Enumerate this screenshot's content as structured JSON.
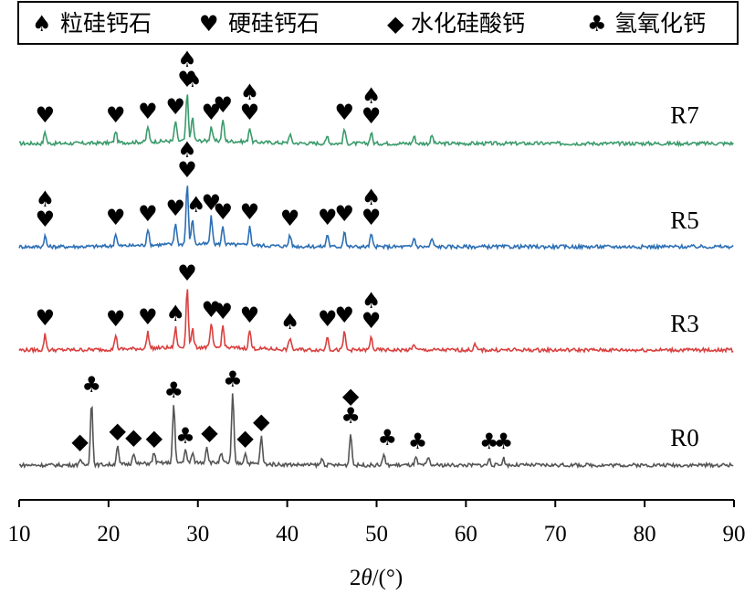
{
  "chart_data": {
    "type": "line",
    "xlim": [
      10,
      90
    ],
    "x_ticks": [
      "10",
      "20",
      "30",
      "40",
      "50",
      "60",
      "70",
      "80",
      "90"
    ],
    "xlabel": "2θ/(°)",
    "xlabel_parts": {
      "prefix": "2",
      "theta": "θ",
      "suffix": "/(°)"
    },
    "grid": false,
    "y_axis_visible": false,
    "legend": {
      "placement": "top",
      "entries": [
        {
          "symbol": "spade-icon",
          "glyph": "♠",
          "label": "粒硅钙石"
        },
        {
          "symbol": "heart-icon",
          "glyph": "♥",
          "label": "硬硅钙石"
        },
        {
          "symbol": "diamond-icon",
          "glyph": "◆",
          "label": "水化硅酸钙"
        },
        {
          "symbol": "club-icon",
          "glyph": "♣",
          "label": "氢氧化钙"
        }
      ]
    },
    "series": [
      {
        "name": "R7",
        "color": "#3a9b6b",
        "peaks": [
          {
            "x": 12.9,
            "h": 13
          },
          {
            "x": 20.8,
            "h": 13
          },
          {
            "x": 24.4,
            "h": 17
          },
          {
            "x": 27.5,
            "h": 22
          },
          {
            "x": 28.8,
            "h": 52
          },
          {
            "x": 29.4,
            "h": 26
          },
          {
            "x": 31.5,
            "h": 16
          },
          {
            "x": 32.8,
            "h": 24
          },
          {
            "x": 35.8,
            "h": 16
          },
          {
            "x": 40.3,
            "h": 10
          },
          {
            "x": 44.5,
            "h": 8
          },
          {
            "x": 46.4,
            "h": 16
          },
          {
            "x": 49.4,
            "h": 12
          },
          {
            "x": 54.2,
            "h": 8
          },
          {
            "x": 56.2,
            "h": 9
          }
        ],
        "markers": [
          {
            "x": 12.9,
            "symbols": [
              "heart"
            ]
          },
          {
            "x": 20.8,
            "symbols": [
              "heart"
            ]
          },
          {
            "x": 24.4,
            "symbols": [
              "heart"
            ]
          },
          {
            "x": 27.5,
            "symbols": [
              "heart"
            ]
          },
          {
            "x": 28.8,
            "symbols": [
              "spade",
              "heart"
            ]
          },
          {
            "x": 29.4,
            "symbols": [
              "spade"
            ]
          },
          {
            "x": 31.5,
            "symbols": [
              "heart"
            ]
          },
          {
            "x": 32.8,
            "symbols": [
              "heart"
            ]
          },
          {
            "x": 35.8,
            "symbols": [
              "spade",
              "heart"
            ]
          },
          {
            "x": 46.4,
            "symbols": [
              "heart"
            ]
          },
          {
            "x": 49.4,
            "symbols": [
              "spade",
              "heart"
            ]
          }
        ]
      },
      {
        "name": "R5",
        "color": "#2c6fb5",
        "peaks": [
          {
            "x": 12.9,
            "h": 12
          },
          {
            "x": 20.8,
            "h": 14
          },
          {
            "x": 24.4,
            "h": 18
          },
          {
            "x": 27.5,
            "h": 24
          },
          {
            "x": 28.8,
            "h": 66
          },
          {
            "x": 29.4,
            "h": 28
          },
          {
            "x": 31.5,
            "h": 30
          },
          {
            "x": 32.8,
            "h": 20
          },
          {
            "x": 35.8,
            "h": 20
          },
          {
            "x": 40.3,
            "h": 13
          },
          {
            "x": 44.5,
            "h": 14
          },
          {
            "x": 46.4,
            "h": 18
          },
          {
            "x": 49.4,
            "h": 14
          },
          {
            "x": 54.2,
            "h": 10
          },
          {
            "x": 56.2,
            "h": 9
          }
        ],
        "markers": [
          {
            "x": 12.9,
            "symbols": [
              "spade",
              "heart"
            ]
          },
          {
            "x": 20.8,
            "symbols": [
              "heart"
            ]
          },
          {
            "x": 24.4,
            "symbols": [
              "heart"
            ]
          },
          {
            "x": 27.5,
            "symbols": [
              "heart"
            ]
          },
          {
            "x": 28.8,
            "symbols": [
              "spade",
              "heart"
            ]
          },
          {
            "x": 29.8,
            "symbols": [
              "spade"
            ]
          },
          {
            "x": 31.5,
            "symbols": [
              "heart"
            ]
          },
          {
            "x": 32.8,
            "symbols": [
              "heart"
            ]
          },
          {
            "x": 35.8,
            "symbols": [
              "heart"
            ]
          },
          {
            "x": 40.3,
            "symbols": [
              "heart"
            ]
          },
          {
            "x": 44.5,
            "symbols": [
              "heart"
            ]
          },
          {
            "x": 46.4,
            "symbols": [
              "heart"
            ]
          },
          {
            "x": 49.4,
            "symbols": [
              "spade",
              "heart"
            ]
          }
        ]
      },
      {
        "name": "R3",
        "color": "#d9403f",
        "peaks": [
          {
            "x": 12.9,
            "h": 17
          },
          {
            "x": 20.8,
            "h": 16
          },
          {
            "x": 24.4,
            "h": 18
          },
          {
            "x": 27.5,
            "h": 22
          },
          {
            "x": 28.8,
            "h": 66
          },
          {
            "x": 29.4,
            "h": 20
          },
          {
            "x": 31.5,
            "h": 26
          },
          {
            "x": 32.8,
            "h": 24
          },
          {
            "x": 35.8,
            "h": 20
          },
          {
            "x": 40.3,
            "h": 13
          },
          {
            "x": 44.5,
            "h": 16
          },
          {
            "x": 46.4,
            "h": 20
          },
          {
            "x": 49.4,
            "h": 14
          },
          {
            "x": 54.2,
            "h": 7
          },
          {
            "x": 61.0,
            "h": 6
          }
        ],
        "markers": [
          {
            "x": 12.9,
            "symbols": [
              "heart"
            ]
          },
          {
            "x": 20.8,
            "symbols": [
              "heart"
            ]
          },
          {
            "x": 24.4,
            "symbols": [
              "heart"
            ]
          },
          {
            "x": 27.5,
            "symbols": [
              "spade"
            ]
          },
          {
            "x": 28.8,
            "symbols": [
              "heart"
            ]
          },
          {
            "x": 31.5,
            "symbols": [
              "heart"
            ]
          },
          {
            "x": 32.8,
            "symbols": [
              "heart"
            ]
          },
          {
            "x": 35.8,
            "symbols": [
              "heart"
            ]
          },
          {
            "x": 40.3,
            "symbols": [
              "spade"
            ]
          },
          {
            "x": 44.5,
            "symbols": [
              "heart"
            ]
          },
          {
            "x": 46.4,
            "symbols": [
              "heart"
            ]
          },
          {
            "x": 49.4,
            "symbols": [
              "spade",
              "heart"
            ]
          }
        ]
      },
      {
        "name": "R0",
        "color": "#555555",
        "peaks": [
          {
            "x": 16.8,
            "h": 6
          },
          {
            "x": 18.1,
            "h": 70
          },
          {
            "x": 21.0,
            "h": 20
          },
          {
            "x": 22.8,
            "h": 13
          },
          {
            "x": 25.1,
            "h": 12
          },
          {
            "x": 27.3,
            "h": 64
          },
          {
            "x": 28.6,
            "h": 14
          },
          {
            "x": 29.4,
            "h": 10
          },
          {
            "x": 31.0,
            "h": 18
          },
          {
            "x": 32.6,
            "h": 10
          },
          {
            "x": 33.9,
            "h": 76
          },
          {
            "x": 35.3,
            "h": 12
          },
          {
            "x": 37.1,
            "h": 30
          },
          {
            "x": 43.9,
            "h": 7
          },
          {
            "x": 47.1,
            "h": 36
          },
          {
            "x": 50.8,
            "h": 12
          },
          {
            "x": 54.4,
            "h": 8
          },
          {
            "x": 55.8,
            "h": 8
          },
          {
            "x": 62.6,
            "h": 7
          },
          {
            "x": 64.2,
            "h": 8
          }
        ],
        "markers": [
          {
            "x": 16.8,
            "symbols": [
              "diamond"
            ]
          },
          {
            "x": 18.1,
            "symbols": [
              "club"
            ]
          },
          {
            "x": 21.0,
            "symbols": [
              "diamond"
            ]
          },
          {
            "x": 22.8,
            "symbols": [
              "diamond"
            ]
          },
          {
            "x": 25.1,
            "symbols": [
              "diamond"
            ]
          },
          {
            "x": 27.3,
            "symbols": [
              "club"
            ]
          },
          {
            "x": 28.6,
            "symbols": [
              "club"
            ]
          },
          {
            "x": 31.3,
            "symbols": [
              "diamond"
            ]
          },
          {
            "x": 33.9,
            "symbols": [
              "club"
            ]
          },
          {
            "x": 35.3,
            "symbols": [
              "diamond"
            ]
          },
          {
            "x": 37.1,
            "symbols": [
              "diamond"
            ]
          },
          {
            "x": 47.1,
            "symbols": [
              "diamond",
              "club"
            ]
          },
          {
            "x": 51.2,
            "symbols": [
              "club"
            ]
          },
          {
            "x": 54.6,
            "symbols": [
              "club"
            ]
          },
          {
            "x": 62.6,
            "symbols": [
              "club"
            ]
          },
          {
            "x": 64.2,
            "symbols": [
              "club"
            ]
          }
        ]
      }
    ]
  }
}
